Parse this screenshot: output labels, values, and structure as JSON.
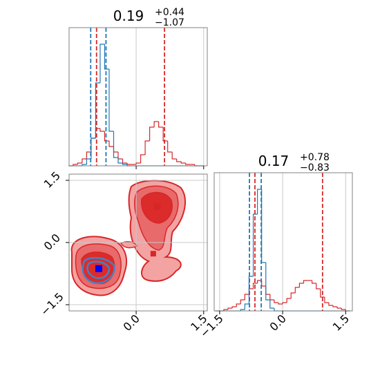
{
  "chart_data": [
    {
      "type": "histogram",
      "title": "0.19",
      "title_sup": "+0.44",
      "title_sub": "−1.07",
      "bins": [
        -1.5,
        -1.4,
        -1.3,
        -1.2,
        -1.1,
        -1.0,
        -0.9,
        -0.8,
        -0.7,
        -0.6,
        -0.5,
        -0.4,
        -0.3,
        -0.2,
        -0.1,
        0.0,
        0.1,
        0.2,
        0.3,
        0.4,
        0.5,
        0.6,
        0.7,
        0.8,
        0.9,
        1.0,
        1.1,
        1.2,
        1.3,
        1.4,
        1.5
      ],
      "series": [
        {
          "color": "#d62728",
          "values": [
            0,
            1,
            2,
            5,
            10,
            20,
            27,
            25,
            18,
            14,
            10,
            5,
            2,
            1,
            1,
            2,
            8,
            18,
            28,
            32,
            28,
            18,
            10,
            5,
            3,
            2,
            1,
            1,
            0,
            0
          ],
          "lines": [
            -0.88,
            0.63
          ]
        },
        {
          "color": "#1f77b4",
          "values": [
            0,
            0,
            0,
            1,
            5,
            20,
            60,
            88,
            70,
            25,
            6,
            2,
            1,
            0,
            0,
            0,
            0,
            0,
            0,
            0,
            0,
            0,
            0,
            0,
            0,
            0,
            0,
            0,
            0,
            0
          ],
          "lines": [
            -1.01,
            -0.67
          ]
        }
      ],
      "xlim": [
        -1.49,
        1.58
      ],
      "ylim": [
        0,
        100
      ],
      "xticks": [
        0,
        1.5
      ],
      "grid": true
    },
    {
      "type": "scatter",
      "series": [
        {
          "color": "#d62728",
          "x": [
            0.47,
            0.38,
            -0.83
          ],
          "y": [
            0.87,
            -0.27,
            -0.63
          ]
        },
        {
          "color": "#0000ff",
          "x": [
            -0.83
          ],
          "y": [
            -0.63
          ]
        }
      ],
      "xlim": [
        -1.49,
        1.58
      ],
      "ylim": [
        -1.65,
        1.65
      ],
      "xticks": [
        {
          "value": 0,
          "label": "0.0"
        },
        1.5
      ],
      "yticks": [
        {
          "value": -1.5,
          "label": "−1.5"
        },
        {
          "value": 0,
          "label": "0.0"
        },
        1.5
      ],
      "grid": true
    },
    {
      "type": "histogram",
      "title": "0.17",
      "title_sup": "+0.78",
      "title_sub": "−0.83",
      "bins": [
        -1.6,
        -1.5,
        -1.4,
        -1.3,
        -1.2,
        -1.1,
        -1.0,
        -0.9,
        -0.8,
        -0.7,
        -0.6,
        -0.5,
        -0.4,
        -0.3,
        -0.2,
        -0.1,
        0.0,
        0.1,
        0.2,
        0.3,
        0.4,
        0.5,
        0.6,
        0.7,
        0.8,
        0.9,
        1.0,
        1.1,
        1.2,
        1.3,
        1.4,
        1.5,
        1.6
      ],
      "series": [
        {
          "color": "#d62728",
          "values": [
            0,
            0,
            1,
            2,
            3,
            5,
            8,
            12,
            16,
            20,
            22,
            18,
            12,
            8,
            6,
            5,
            6,
            9,
            13,
            17,
            20,
            22,
            22,
            20,
            16,
            10,
            6,
            4,
            3,
            2,
            1,
            0
          ],
          "lines": [
            -0.66,
            0.95
          ]
        },
        {
          "color": "#1f77b4",
          "values": [
            0,
            0,
            0,
            0,
            0,
            0,
            1,
            5,
            25,
            70,
            88,
            35,
            8,
            2,
            0,
            0,
            0,
            0,
            0,
            0,
            0,
            0,
            0,
            0,
            0,
            0,
            0,
            0,
            0,
            0,
            0,
            0
          ],
          "lines": [
            -0.79,
            -0.51
          ]
        }
      ],
      "xlim": [
        -1.63,
        1.66
      ],
      "ylim": [
        0,
        100
      ],
      "xticks": [
        {
          "value": -1.5,
          "label": "−1.5"
        },
        {
          "value": 0,
          "label": "0.0"
        },
        1.5
      ],
      "grid": true
    }
  ]
}
